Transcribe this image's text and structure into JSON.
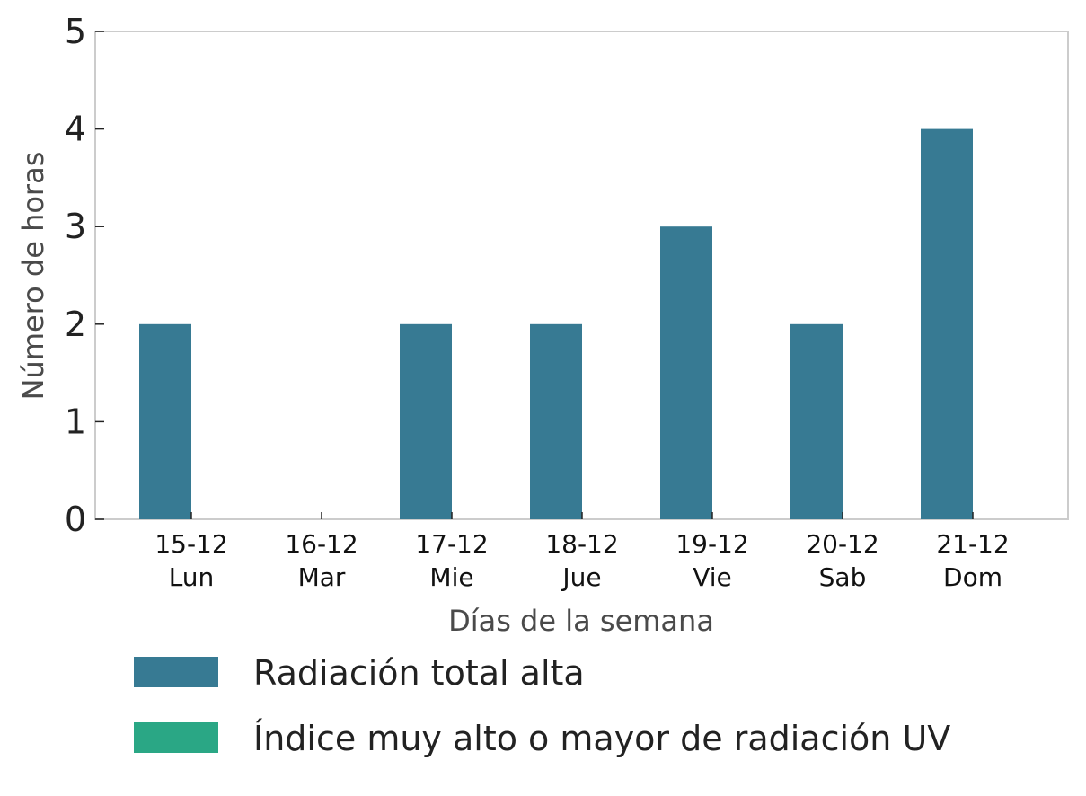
{
  "chart_data": {
    "type": "bar",
    "categories": [
      {
        "date": "15-12",
        "day": "Lun"
      },
      {
        "date": "16-12",
        "day": "Mar"
      },
      {
        "date": "17-12",
        "day": "Mie"
      },
      {
        "date": "18-12",
        "day": "Jue"
      },
      {
        "date": "19-12",
        "day": "Vie"
      },
      {
        "date": "20-12",
        "day": "Sab"
      },
      {
        "date": "21-12",
        "day": "Dom"
      }
    ],
    "series": [
      {
        "name": "Radiación total alta",
        "color": "#377a93",
        "values": [
          2,
          0,
          2,
          2,
          3,
          2,
          4
        ]
      },
      {
        "name": "Índice muy alto o mayor de radiación UV",
        "color": "#2aa785",
        "values": [
          0,
          0,
          0,
          0,
          0,
          0,
          0
        ]
      }
    ],
    "xlabel": "Días de la semana",
    "ylabel": "Número de horas",
    "ylim": [
      0,
      5
    ],
    "yticks": [
      0,
      1,
      2,
      3,
      4,
      5
    ],
    "grid": false,
    "legend_position": "bottom"
  }
}
